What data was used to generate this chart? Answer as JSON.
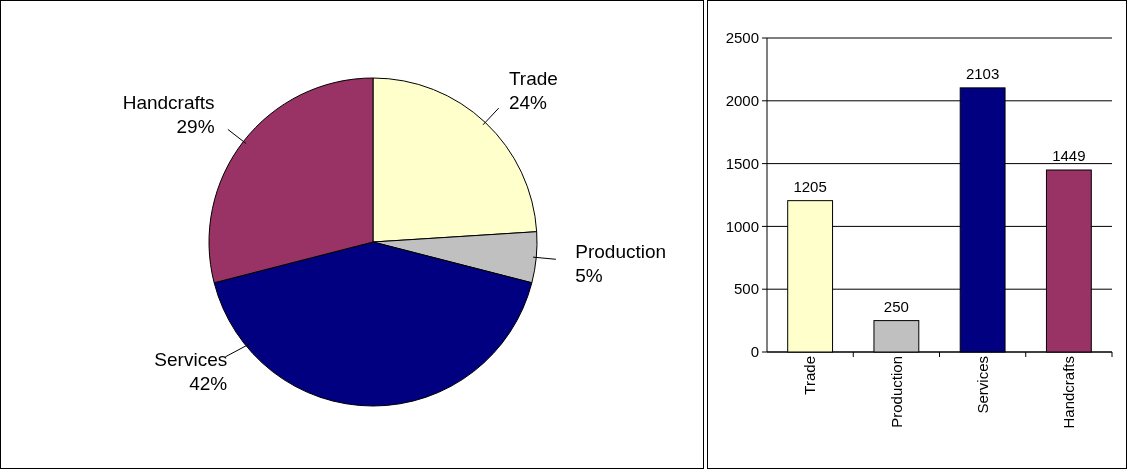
{
  "chart_data": [
    {
      "type": "pie",
      "categories": [
        "Trade",
        "Production",
        "Services",
        "Handcrafts"
      ],
      "values": [
        24,
        5,
        42,
        29
      ],
      "colors": [
        "#ffffcc",
        "#c0c0c0",
        "#000080",
        "#993366"
      ],
      "value_labels": [
        "24%",
        "5%",
        "42%",
        "29%"
      ]
    },
    {
      "type": "bar",
      "categories": [
        "Trade",
        "Production",
        "Services",
        "Handcrafts"
      ],
      "values": [
        1205,
        250,
        2103,
        1449
      ],
      "colors": [
        "#ffffcc",
        "#c0c0c0",
        "#000080",
        "#993366"
      ],
      "ylim": [
        0,
        2500
      ],
      "yticks": [
        0,
        500,
        1000,
        1500,
        2000,
        2500
      ],
      "grid": "y",
      "data_labels": true
    }
  ]
}
